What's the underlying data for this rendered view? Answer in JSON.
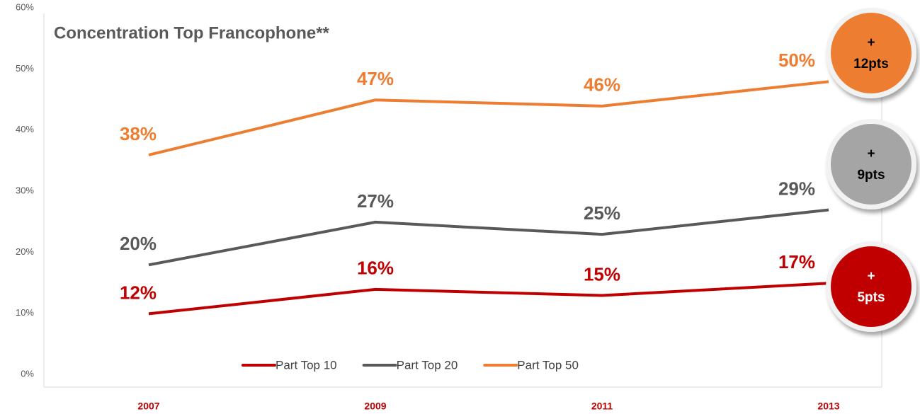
{
  "chart_data": {
    "type": "line",
    "title": "Concentration Top Francophone**",
    "categories": [
      "2007",
      "2009",
      "2011",
      "2013"
    ],
    "series": [
      {
        "name": "Part Top 10",
        "color": "#c00000",
        "values": [
          12,
          16,
          15,
          17
        ],
        "value_labels": [
          "12%",
          "16%",
          "15%",
          "17%"
        ]
      },
      {
        "name": "Part Top 20",
        "color": "#595959",
        "values": [
          20,
          27,
          25,
          29
        ],
        "value_labels": [
          "20%",
          "27%",
          "25%",
          "29%"
        ]
      },
      {
        "name": "Part Top 50",
        "color": "#ed7d31",
        "values": [
          38,
          47,
          46,
          50
        ],
        "value_labels": [
          "38%",
          "47%",
          "46%",
          "50%"
        ]
      }
    ],
    "ylim": [
      0,
      60
    ],
    "yticks": [
      {
        "value": 0,
        "label": "0%"
      },
      {
        "value": 10,
        "label": "10%"
      },
      {
        "value": 20,
        "label": "20%"
      },
      {
        "value": 30,
        "label": "30%"
      },
      {
        "value": 40,
        "label": "40%"
      },
      {
        "value": 50,
        "label": "50%"
      },
      {
        "value": 60,
        "label": "60%"
      }
    ],
    "legend": "bottom",
    "annotations": [
      {
        "lines": [
          "+",
          "12pts"
        ],
        "color": "#ed7d31",
        "text_color": "#000000"
      },
      {
        "lines": [
          "+",
          "9pts"
        ],
        "color": "#a5a5a5",
        "text_color": "#000000"
      },
      {
        "lines": [
          "+",
          "5pts"
        ],
        "color": "#c00000",
        "text_color": "#ffffff"
      }
    ]
  }
}
